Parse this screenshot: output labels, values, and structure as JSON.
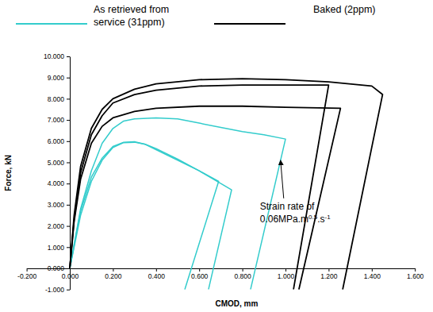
{
  "chart_data": {
    "type": "line",
    "xlabel": "CMOD, mm",
    "ylabel": "Force, kN",
    "grid": false,
    "xlim": [
      -0.2,
      1.6
    ],
    "ylim": [
      -1,
      10
    ],
    "xticks": [
      {
        "value": -0.2,
        "label": "-0.200"
      },
      {
        "value": 0,
        "label": "0.000"
      },
      {
        "value": 0.2,
        "label": "0.200"
      },
      {
        "value": 0.4,
        "label": "0.400"
      },
      {
        "value": 0.6,
        "label": "0.600"
      },
      {
        "value": 0.8,
        "label": "0.800"
      },
      {
        "value": 1,
        "label": "1.000"
      },
      {
        "value": 1.2,
        "label": "1.200"
      },
      {
        "value": 1.4,
        "label": "1.400"
      },
      {
        "value": 1.6,
        "label": "1.600"
      }
    ],
    "yticks": [
      {
        "value": -1,
        "label": "-1.000"
      },
      {
        "value": 0,
        "label": "0.000"
      },
      {
        "value": 1,
        "label": "1.000"
      },
      {
        "value": 2,
        "label": "2.000"
      },
      {
        "value": 3,
        "label": "3.000"
      },
      {
        "value": 4,
        "label": "4.000"
      },
      {
        "value": 5,
        "label": "5.000"
      },
      {
        "value": 6,
        "label": "6.000"
      },
      {
        "value": 7,
        "label": "7.000"
      },
      {
        "value": 8,
        "label": "8.000"
      },
      {
        "value": 9,
        "label": "9.000"
      },
      {
        "value": 10,
        "label": "10.000"
      }
    ],
    "series": [
      {
        "name": "As retrieved from service (31ppm)",
        "color": "#33cccc",
        "x": [
          0,
          0.05,
          0.1,
          0.15,
          0.2,
          0.25,
          0.3,
          0.4,
          0.5,
          0.6,
          0.7,
          0.8,
          0.9,
          1.0,
          0.838
        ],
        "values": [
          0,
          2.8,
          4.6,
          5.9,
          6.6,
          6.95,
          7.05,
          7.1,
          7.05,
          6.85,
          6.65,
          6.45,
          6.3,
          6.1,
          -1
        ]
      },
      {
        "color": "#33cccc",
        "x": [
          0,
          0.05,
          0.1,
          0.15,
          0.2,
          0.25,
          0.3,
          0.35,
          0.4,
          0.5,
          0.6,
          0.69,
          0.533
        ],
        "values": [
          0,
          2.5,
          4.1,
          5.1,
          5.7,
          5.93,
          5.95,
          5.85,
          5.6,
          5.1,
          4.6,
          4.1,
          -1
        ]
      },
      {
        "color": "#33cccc",
        "x": [
          0,
          0.05,
          0.1,
          0.15,
          0.2,
          0.25,
          0.3,
          0.35,
          0.4,
          0.5,
          0.6,
          0.7,
          0.75,
          0.643
        ],
        "values": [
          0,
          2.7,
          4.3,
          5.2,
          5.75,
          5.95,
          5.97,
          5.85,
          5.65,
          5.15,
          4.6,
          4.0,
          3.7,
          -1
        ]
      },
      {
        "name": "Baked (2ppm)",
        "color": "#000000",
        "x": [
          0,
          0.02,
          0.05,
          0.1,
          0.15,
          0.2,
          0.3,
          0.4,
          0.6,
          0.8,
          1.0,
          1.2,
          1.4,
          1.45,
          1.265
        ],
        "values": [
          0,
          2.5,
          4.8,
          6.6,
          7.5,
          8.0,
          8.45,
          8.7,
          8.9,
          8.95,
          8.9,
          8.8,
          8.6,
          8.2,
          -1
        ]
      },
      {
        "color": "#000000",
        "x": [
          0,
          0.02,
          0.05,
          0.1,
          0.15,
          0.2,
          0.3,
          0.4,
          0.6,
          0.8,
          1.0,
          1.2,
          1.037
        ],
        "values": [
          0,
          2.3,
          4.5,
          6.3,
          7.2,
          7.8,
          8.2,
          8.4,
          8.6,
          8.65,
          8.65,
          8.65,
          -1
        ]
      },
      {
        "color": "#000000",
        "x": [
          0,
          0.02,
          0.05,
          0.1,
          0.15,
          0.2,
          0.3,
          0.4,
          0.6,
          0.8,
          1.0,
          1.255,
          1.062
        ],
        "values": [
          0,
          2.2,
          4.2,
          5.9,
          6.7,
          7.1,
          7.4,
          7.55,
          7.65,
          7.65,
          7.6,
          7.55,
          -1
        ]
      }
    ],
    "annotation": {
      "text": [
        "Strain rate of",
        "0.06MPa.m",
        "0.5",
        ".s",
        "-1"
      ],
      "x": 0.977,
      "y": 5.1
    }
  }
}
